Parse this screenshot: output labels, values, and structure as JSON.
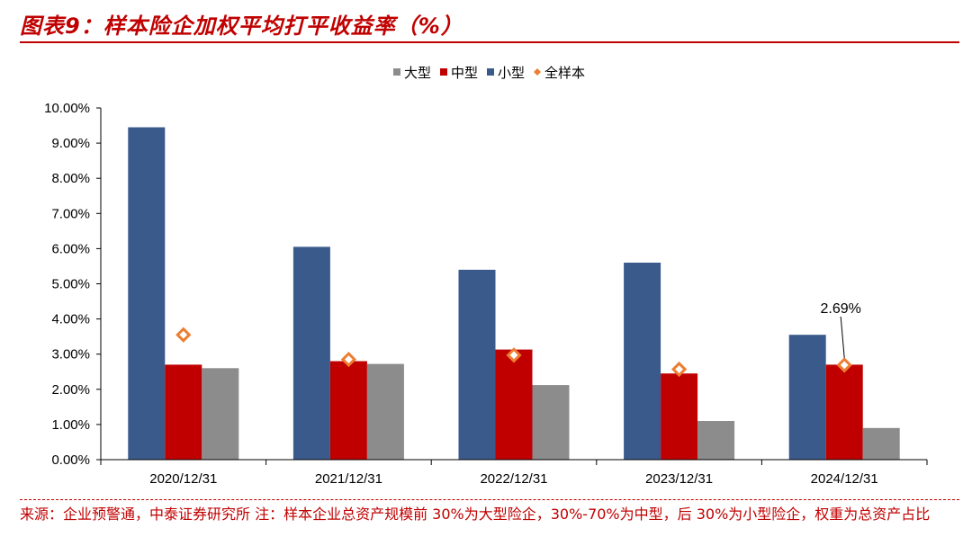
{
  "header": {
    "title": "图表9：样本险企加权平均打平收益率（%）"
  },
  "footer": {
    "source": "来源：企业预警通，中泰证券研究所 注：样本企业总资产规模前 30%为大型险企，30%-70%为中型，后 30%为小型险企，权重为总资产占比"
  },
  "colors": {
    "large": "#8c8c8c",
    "medium": "#c00000",
    "small": "#3a5a8c",
    "total": "#ed7d31",
    "accent": "#c00000"
  },
  "chart_data": {
    "type": "bar",
    "categories": [
      "2020/12/31",
      "2021/12/31",
      "2022/12/31",
      "2023/12/31",
      "2024/12/31"
    ],
    "series": [
      {
        "name": "大型",
        "key": "large",
        "values": [
          2.6,
          2.72,
          2.12,
          1.1,
          0.9
        ]
      },
      {
        "name": "中型",
        "key": "medium",
        "values": [
          2.7,
          2.8,
          3.13,
          2.45,
          2.7
        ]
      },
      {
        "name": "小型",
        "key": "small",
        "values": [
          9.45,
          6.05,
          5.4,
          5.6,
          3.55
        ]
      },
      {
        "name": "全样本",
        "key": "total",
        "values": [
          3.55,
          2.85,
          2.97,
          2.57,
          2.69
        ],
        "marker": "diamond"
      }
    ],
    "bar_order": [
      "small",
      "medium",
      "large"
    ],
    "y_ticks": [
      "0.00%",
      "1.00%",
      "2.00%",
      "3.00%",
      "4.00%",
      "5.00%",
      "6.00%",
      "7.00%",
      "8.00%",
      "9.00%",
      "10.00%"
    ],
    "ylim": [
      0,
      10
    ],
    "y_unit": "%",
    "legend": {
      "position": "top-center",
      "order": [
        "large",
        "medium",
        "small",
        "total"
      ]
    },
    "annotations": [
      {
        "category": "2024/12/31",
        "series": "total",
        "text": "2.69%"
      }
    ],
    "grid": false
  }
}
